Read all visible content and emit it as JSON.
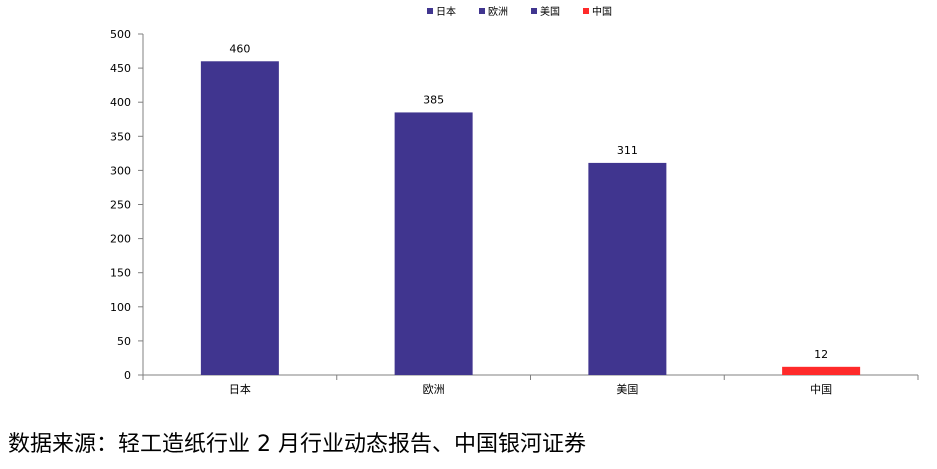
{
  "chart_data": {
    "type": "bar",
    "categories": [
      "日本",
      "欧洲",
      "美国",
      "中国"
    ],
    "values": [
      460,
      385,
      311,
      12
    ],
    "data_labels": [
      "460",
      "385",
      "311",
      "12"
    ],
    "colors": [
      "#40358F",
      "#40358F",
      "#40358F",
      "#FF2A2A"
    ],
    "legend": [
      "日本",
      "欧洲",
      "美国",
      "中国"
    ],
    "legend_position": "top-center",
    "ylim": [
      0,
      500
    ],
    "yticks": [
      "0",
      "50",
      "100",
      "150",
      "200",
      "250",
      "300",
      "350",
      "400",
      "450",
      "500"
    ],
    "ytick_values": [
      0,
      50,
      100,
      150,
      200,
      250,
      300,
      350,
      400,
      450,
      500
    ],
    "grid": false
  },
  "caption": "数据来源：轻工造纸行业 2 月行业动态报告、中国银河证券"
}
